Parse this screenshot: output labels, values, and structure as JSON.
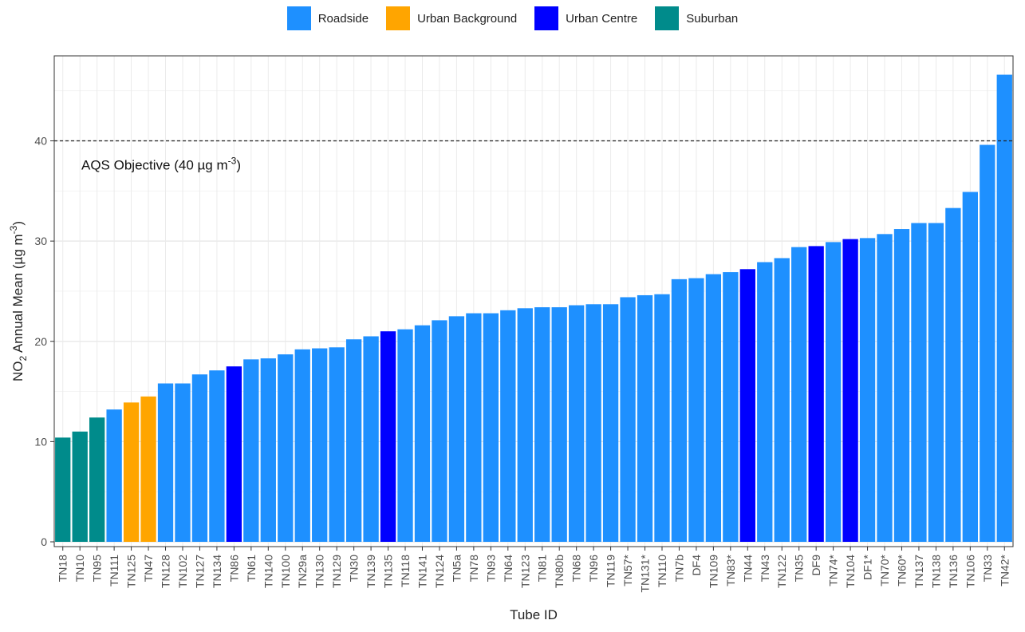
{
  "legend": {
    "items": [
      {
        "label": "Roadside",
        "color": "#1E90FF"
      },
      {
        "label": "Urban Background",
        "color": "#FFA500"
      },
      {
        "label": "Urban Centre",
        "color": "#0000FF"
      },
      {
        "label": "Suburban",
        "color": "#008B8B"
      }
    ]
  },
  "chart_data": {
    "type": "bar",
    "xlabel": "Tube ID",
    "ylabel": "NO2 Annual Mean (µg m-3)",
    "ylim": [
      0,
      48
    ],
    "yticks": [
      0,
      10,
      20,
      30,
      40
    ],
    "grid": true,
    "legend_position": "top",
    "reference_line": {
      "value": 40,
      "style": "dashed",
      "label": "AQS Objective (40 µg m-3)"
    },
    "categories": [
      "TN18",
      "TN10",
      "TN95",
      "TN111",
      "TN125",
      "TN47",
      "TN128",
      "TN102",
      "TN127",
      "TN134",
      "TN86",
      "TN61",
      "TN140",
      "TN100",
      "TN29a",
      "TN130",
      "TN129",
      "TN30",
      "TN139",
      "TN135",
      "TN118",
      "TN141",
      "TN124",
      "TN5a",
      "TN78",
      "TN93",
      "TN64",
      "TN123",
      "TN81",
      "TN80b",
      "TN68",
      "TN96",
      "TN119",
      "TN57*",
      "TN131*",
      "TN110",
      "TN7b",
      "DF4",
      "TN109",
      "TN83*",
      "TN44",
      "TN43",
      "TN122",
      "TN35",
      "DF9",
      "TN74*",
      "TN104",
      "DF1*",
      "TN70*",
      "TN60*",
      "TN137",
      "TN138",
      "TN136",
      "TN106",
      "TN33",
      "TN42*"
    ],
    "values": [
      10.4,
      11.0,
      12.4,
      13.2,
      13.9,
      14.5,
      15.8,
      15.8,
      16.7,
      17.1,
      17.5,
      18.2,
      18.3,
      18.7,
      19.2,
      19.3,
      19.4,
      20.2,
      20.5,
      21.0,
      21.2,
      21.6,
      22.1,
      22.5,
      22.8,
      22.8,
      23.1,
      23.3,
      23.4,
      23.4,
      23.6,
      23.7,
      23.7,
      24.4,
      24.6,
      24.7,
      26.2,
      26.3,
      26.7,
      26.9,
      27.2,
      27.9,
      28.3,
      29.4,
      29.5,
      29.9,
      30.2,
      30.3,
      30.7,
      31.2,
      31.8,
      31.8,
      33.3,
      34.9,
      39.6,
      46.6
    ],
    "site_types": [
      "Suburban",
      "Suburban",
      "Suburban",
      "Roadside",
      "Urban Background",
      "Urban Background",
      "Roadside",
      "Roadside",
      "Roadside",
      "Roadside",
      "Urban Centre",
      "Roadside",
      "Roadside",
      "Roadside",
      "Roadside",
      "Roadside",
      "Roadside",
      "Roadside",
      "Roadside",
      "Urban Centre",
      "Roadside",
      "Roadside",
      "Roadside",
      "Roadside",
      "Roadside",
      "Roadside",
      "Roadside",
      "Roadside",
      "Roadside",
      "Roadside",
      "Roadside",
      "Roadside",
      "Roadside",
      "Roadside",
      "Roadside",
      "Roadside",
      "Roadside",
      "Roadside",
      "Roadside",
      "Roadside",
      "Urban Centre",
      "Roadside",
      "Roadside",
      "Roadside",
      "Urban Centre",
      "Roadside",
      "Urban Centre",
      "Roadside",
      "Roadside",
      "Roadside",
      "Roadside",
      "Roadside",
      "Roadside",
      "Roadside",
      "Roadside",
      "Roadside"
    ]
  }
}
